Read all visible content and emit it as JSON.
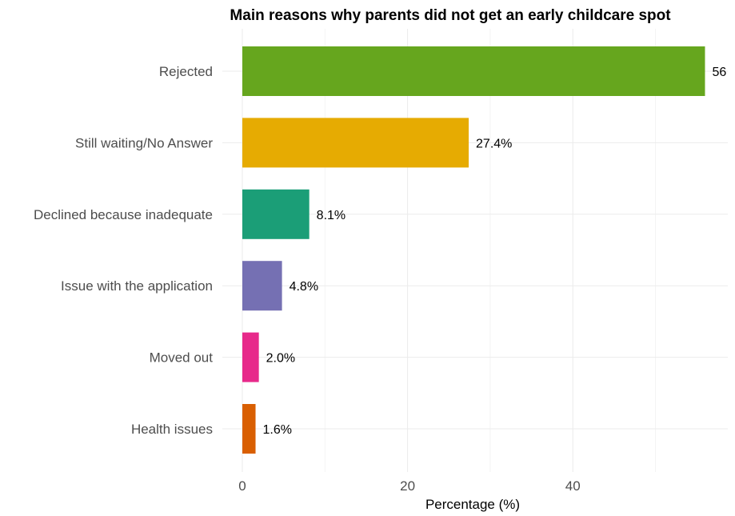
{
  "chart_data": {
    "type": "bar",
    "orientation": "horizontal",
    "title": "Main reasons why parents did not get an early childcare spot",
    "xlabel": "Percentage (%)",
    "ylabel": "",
    "categories": [
      "Rejected",
      "Still waiting/No Answer",
      "Declined because inadequate",
      "Issue with the application",
      "Moved out",
      "Health issues"
    ],
    "values": [
      56.0,
      27.4,
      8.1,
      4.8,
      2.0,
      1.6
    ],
    "data_labels": [
      "56",
      "27.4%",
      "8.1%",
      "4.8%",
      "2.0%",
      "1.6%"
    ],
    "colors": [
      "#66a61e",
      "#e6ab02",
      "#1b9e77",
      "#7570b3",
      "#e7298a",
      "#d95f02"
    ],
    "xlim": [
      0,
      59
    ],
    "xticks": [
      0,
      20,
      40
    ],
    "xtick_labels": [
      "0",
      "20",
      "40"
    ],
    "grid": true,
    "legend": "none"
  }
}
